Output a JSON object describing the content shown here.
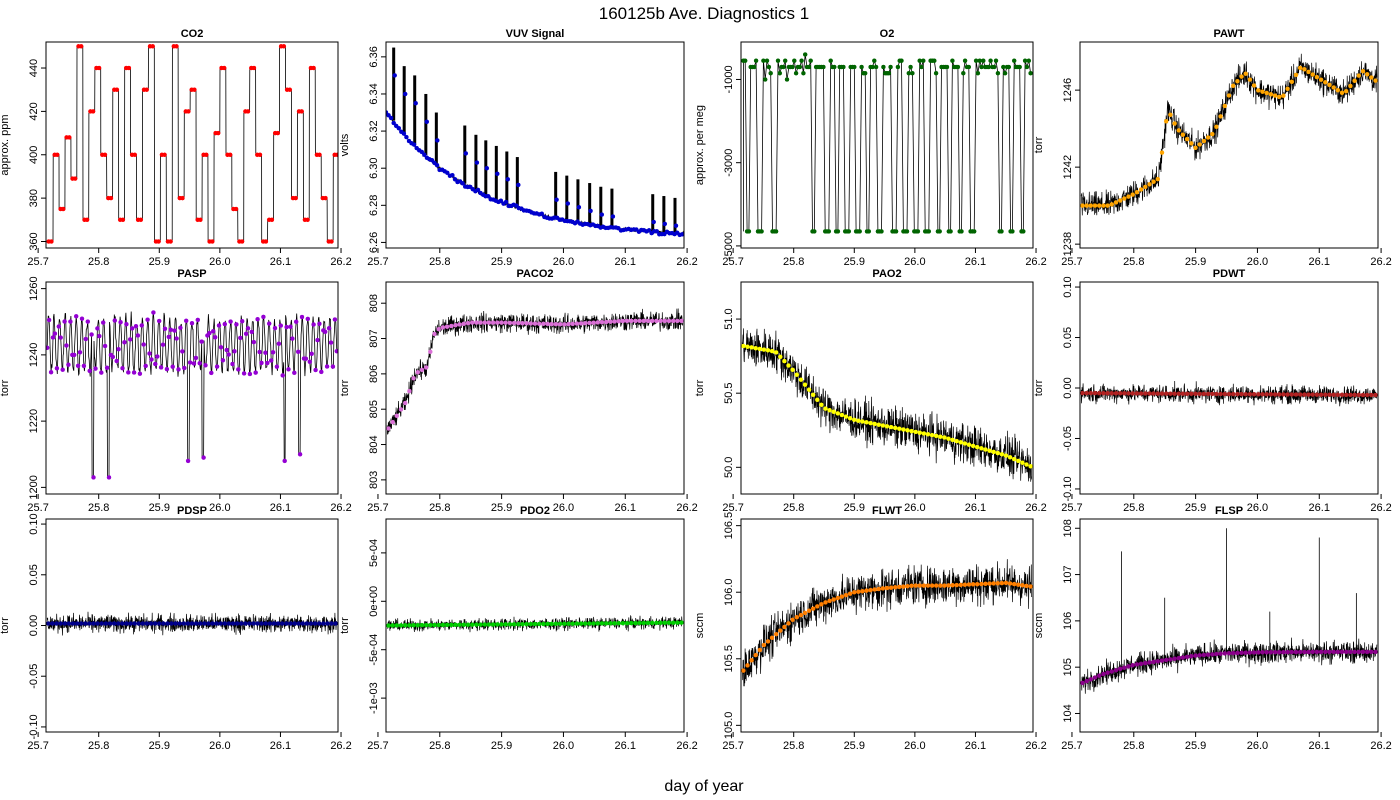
{
  "figure": {
    "title": "160125b   Ave. Diagnostics 1",
    "xlabel": "day of year"
  },
  "chart_data": [
    {
      "id": "co2",
      "type": "line",
      "title": "CO2",
      "ylabel": "approx. ppm",
      "xlim": [
        25.713,
        26.195
      ],
      "ylim": [
        357,
        452
      ],
      "xticks": [
        "25.7",
        "25.8",
        "25.9",
        "26.0",
        "26.1",
        "26.2"
      ],
      "yticks": [
        "360",
        "380",
        "400",
        "420",
        "440"
      ],
      "marker_color": "#ff0000",
      "series": [
        {
          "name": "CO2",
          "levels": [
            360,
            400,
            375,
            408,
            389,
            450,
            370,
            420,
            440,
            400,
            380,
            430,
            370,
            440,
            400,
            370,
            430,
            450,
            360,
            400,
            360,
            450,
            380,
            420,
            430,
            370,
            400,
            360,
            410,
            440,
            400,
            375,
            360,
            420,
            440,
            400,
            360,
            370,
            410,
            450,
            430,
            380,
            420,
            370,
            440,
            400,
            380,
            360,
            400
          ],
          "hold": [
            0,
            1,
            0,
            2,
            1,
            1,
            1,
            0,
            1,
            1,
            1,
            1,
            1,
            0,
            2,
            1,
            1,
            0,
            1,
            1,
            0,
            2,
            1,
            1,
            1,
            0,
            1,
            1,
            1,
            1,
            1,
            0,
            1,
            1,
            1,
            0,
            1,
            1,
            1,
            1,
            0,
            1,
            1,
            1,
            1,
            0,
            2,
            1,
            0
          ]
        }
      ]
    },
    {
      "id": "vuv",
      "type": "line",
      "title": "VUV Signal",
      "ylabel": "volts",
      "xlim": [
        25.713,
        26.195
      ],
      "ylim": [
        6.257,
        6.368
      ],
      "xticks": [
        "25.7",
        "25.8",
        "25.9",
        "26.0",
        "26.1",
        "26.2"
      ],
      "yticks": [
        "6.26",
        "6.28",
        "6.30",
        "6.32",
        "6.34",
        "6.36"
      ],
      "marker_color": "#0000cd",
      "series": [
        {
          "name": "VUV",
          "base_start": 6.33,
          "base_end": 6.262,
          "spike_days": [
            25.723,
            25.74,
            25.757,
            25.775,
            25.792,
            25.838,
            25.856,
            25.872,
            25.889,
            25.906,
            25.923,
            25.985,
            26.003,
            26.021,
            26.04,
            26.058,
            26.076,
            26.142,
            26.16,
            26.178
          ],
          "spike_tops": [
            6.365,
            6.355,
            6.35,
            6.34,
            6.33,
            6.323,
            6.318,
            6.315,
            6.312,
            6.309,
            6.306,
            6.298,
            6.296,
            6.294,
            6.292,
            6.29,
            6.289,
            6.286,
            6.285,
            6.284
          ]
        }
      ]
    },
    {
      "id": "o2",
      "type": "line",
      "title": "O2",
      "ylabel": "approx. per meg",
      "xlim": [
        25.713,
        26.195
      ],
      "ylim": [
        -5050,
        -100
      ],
      "xticks": [
        "25.7",
        "25.8",
        "25.9",
        "26.0",
        "26.1",
        "26.2"
      ],
      "yticks": [
        "-5000",
        "-3000",
        "-1000"
      ],
      "marker_color": "#006400",
      "series": [
        {
          "name": "O2",
          "high": -700,
          "low": -4650,
          "low_days": [
            25.725,
            25.745,
            25.768,
            25.833,
            25.856,
            25.872,
            25.889,
            25.906,
            25.923,
            25.942,
            25.966,
            25.985,
            26.003,
            26.021,
            26.04,
            26.058,
            26.076,
            26.096,
            26.142,
            26.16,
            26.178
          ]
        }
      ]
    },
    {
      "id": "pawt",
      "type": "line",
      "title": "PAWT",
      "ylabel": "torr",
      "xlim": [
        25.713,
        26.195
      ],
      "ylim": [
        1237.8,
        1248.5
      ],
      "xticks": [
        "25.7",
        "25.8",
        "25.9",
        "26.0",
        "26.1",
        "26.2"
      ],
      "yticks": [
        "1238",
        "1242",
        "1246"
      ],
      "marker_color": "#ffa500",
      "series": [
        {
          "name": "PAWT",
          "points": [
            [
              25.713,
              1240.0
            ],
            [
              25.76,
              1240.0
            ],
            [
              25.8,
              1240.6
            ],
            [
              25.84,
              1241.4
            ],
            [
              25.855,
              1245.0
            ],
            [
              25.87,
              1244.0
            ],
            [
              25.9,
              1243.0
            ],
            [
              25.93,
              1243.8
            ],
            [
              25.96,
              1246.2
            ],
            [
              25.98,
              1246.9
            ],
            [
              26.0,
              1246.0
            ],
            [
              26.04,
              1245.6
            ],
            [
              26.07,
              1247.2
            ],
            [
              26.1,
              1246.6
            ],
            [
              26.14,
              1245.8
            ],
            [
              26.17,
              1247.0
            ],
            [
              26.195,
              1246.4
            ]
          ],
          "noise": 1.0
        }
      ]
    },
    {
      "id": "pasp",
      "type": "line",
      "title": "PASP",
      "ylabel": "torr",
      "xlim": [
        25.713,
        26.195
      ],
      "ylim": [
        1198,
        1262
      ],
      "xticks": [
        "25.7",
        "25.8",
        "25.9",
        "26.0",
        "26.1",
        "26.2"
      ],
      "yticks": [
        "1200",
        "1220",
        "1240",
        "1260"
      ],
      "marker_color": "#9400d3",
      "series": [
        {
          "name": "PASP",
          "base": 1243,
          "dip_days": [
            25.79,
            25.816,
            25.948,
            25.972,
            26.107,
            26.131
          ],
          "dip_values": [
            1203,
            1203,
            1208,
            1209,
            1208,
            1210
          ]
        }
      ]
    },
    {
      "id": "paco2",
      "type": "line",
      "title": "PACO2",
      "ylabel": "torr",
      "xlim": [
        25.713,
        26.195
      ],
      "ylim": [
        802.6,
        808.6
      ],
      "xticks": [
        "25.7",
        "25.8",
        "25.9",
        "26.0",
        "26.1",
        "26.2"
      ],
      "yticks": [
        "803",
        "804",
        "805",
        "806",
        "807",
        "808"
      ],
      "marker_color": "#da70d6",
      "series": [
        {
          "name": "PACO2",
          "points": [
            [
              25.715,
              804.4
            ],
            [
              25.73,
              804.8
            ],
            [
              25.745,
              805.2
            ],
            [
              25.76,
              806.0
            ],
            [
              25.78,
              806.2
            ],
            [
              25.79,
              807.1
            ],
            [
              25.8,
              807.3
            ],
            [
              25.85,
              807.45
            ],
            [
              25.9,
              807.45
            ],
            [
              26.0,
              807.4
            ],
            [
              26.1,
              807.5
            ],
            [
              26.195,
              807.5
            ]
          ],
          "noise": 0.4
        }
      ]
    },
    {
      "id": "pao2",
      "type": "line",
      "title": "PAO2",
      "ylabel": "torr",
      "xlim": [
        25.713,
        26.195
      ],
      "ylim": [
        49.82,
        51.25
      ],
      "xticks": [
        "25.7",
        "25.8",
        "25.9",
        "26.0",
        "26.1",
        "26.2"
      ],
      "yticks": [
        "50.0",
        "50.5",
        "51.0"
      ],
      "marker_color": "#ffff00",
      "series": [
        {
          "name": "PAO2",
          "points": [
            [
              25.715,
              50.82
            ],
            [
              25.77,
              50.78
            ],
            [
              25.8,
              50.65
            ],
            [
              25.85,
              50.4
            ],
            [
              25.9,
              50.32
            ],
            [
              25.95,
              50.28
            ],
            [
              26.0,
              50.24
            ],
            [
              26.05,
              50.2
            ],
            [
              26.1,
              50.14
            ],
            [
              26.15,
              50.08
            ],
            [
              26.195,
              50.0
            ]
          ],
          "noise": 0.2
        }
      ]
    },
    {
      "id": "pdwt",
      "type": "line",
      "title": "PDWT",
      "ylabel": "torr",
      "xlim": [
        25.713,
        26.195
      ],
      "ylim": [
        -0.105,
        0.105
      ],
      "xticks": [
        "25.7",
        "25.8",
        "25.9",
        "26.0",
        "26.1",
        "26.2"
      ],
      "yticks": [
        "-0.10",
        "-0.05",
        "0.00",
        "0.05",
        "0.10"
      ],
      "marker_color": "#b22222",
      "series": [
        {
          "name": "PDWT",
          "points": [
            [
              25.713,
              -0.005
            ],
            [
              26.195,
              -0.007
            ]
          ],
          "noise": 0.013
        }
      ]
    },
    {
      "id": "pdsp",
      "type": "line",
      "title": "PDSP",
      "ylabel": "torr",
      "xlim": [
        25.713,
        26.195
      ],
      "ylim": [
        -0.105,
        0.105
      ],
      "xticks": [
        "25.7",
        "25.8",
        "25.9",
        "26.0",
        "26.1",
        "26.2"
      ],
      "yticks": [
        "-0.10",
        "-0.05",
        "0.00",
        "0.05",
        "0.10"
      ],
      "marker_color": "#00008b",
      "series": [
        {
          "name": "PDSP",
          "points": [
            [
              25.713,
              0.002
            ],
            [
              26.195,
              0.002
            ]
          ],
          "noise": 0.013
        }
      ]
    },
    {
      "id": "pdo2",
      "type": "line",
      "title": "PDO2",
      "ylabel": "torr",
      "xlim": [
        25.713,
        26.195
      ],
      "ylim": [
        -0.00135,
        0.00085
      ],
      "xticks": [
        "25.7",
        "25.8",
        "25.9",
        "26.0",
        "26.1",
        "26.2"
      ],
      "yticks": [
        "-1e-03",
        "-5e-04",
        "0e+00",
        "5e-04"
      ],
      "marker_color": "#00cd00",
      "series": [
        {
          "name": "PDO2",
          "points": [
            [
              25.713,
              -0.00025
            ],
            [
              26.195,
              -0.00022
            ]
          ],
          "noise": 9e-05
        }
      ]
    },
    {
      "id": "flwt",
      "type": "line",
      "title": "FLWT",
      "ylabel": "sccm",
      "xlim": [
        25.713,
        26.195
      ],
      "ylim": [
        104.95,
        106.55
      ],
      "xticks": [
        "25.7",
        "25.8",
        "25.9",
        "26.0",
        "26.1",
        "26.2"
      ],
      "yticks": [
        "105.0",
        "105.5",
        "106.0",
        "106.5"
      ],
      "marker_color": "#ff7f00",
      "series": [
        {
          "name": "FLWT",
          "points": [
            [
              25.715,
              105.4
            ],
            [
              25.75,
              105.6
            ],
            [
              25.8,
              105.8
            ],
            [
              25.85,
              105.92
            ],
            [
              25.9,
              106.0
            ],
            [
              25.95,
              106.03
            ],
            [
              26.0,
              106.05
            ],
            [
              26.05,
              106.05
            ],
            [
              26.1,
              106.06
            ],
            [
              26.15,
              106.07
            ],
            [
              26.195,
              106.04
            ]
          ],
          "noise": 0.22
        }
      ]
    },
    {
      "id": "flsp",
      "type": "line",
      "title": "FLSP",
      "ylabel": "sccm",
      "xlim": [
        25.713,
        26.195
      ],
      "ylim": [
        103.6,
        108.2
      ],
      "xticks": [
        "25.7",
        "25.8",
        "25.9",
        "26.0",
        "26.1",
        "26.2"
      ],
      "yticks": [
        "104",
        "105",
        "106",
        "107",
        "108"
      ],
      "marker_color": "#8b008b",
      "series": [
        {
          "name": "FLSP",
          "points": [
            [
              25.715,
              104.65
            ],
            [
              25.75,
              104.85
            ],
            [
              25.8,
              105.05
            ],
            [
              25.85,
              105.15
            ],
            [
              25.9,
              105.25
            ],
            [
              25.95,
              105.3
            ],
            [
              26.0,
              105.32
            ],
            [
              26.1,
              105.33
            ],
            [
              26.195,
              105.33
            ]
          ],
          "noise": 0.35,
          "spike_days": [
            25.78,
            25.85,
            25.95,
            26.02,
            26.1,
            26.16
          ],
          "spike_values": [
            107.5,
            106.5,
            108.0,
            106.2,
            107.8,
            106.6
          ]
        }
      ]
    }
  ]
}
